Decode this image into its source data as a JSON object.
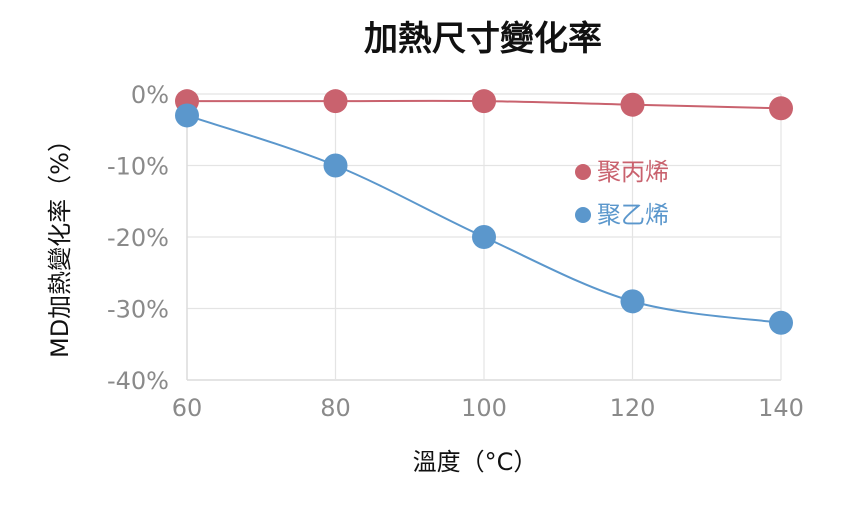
{
  "chart_data": {
    "type": "line",
    "title": "加熱尺寸變化率",
    "xlabel": "溫度（°C）",
    "ylabel": "MD加熱變化率（%）",
    "x": [
      60,
      80,
      100,
      120,
      140
    ],
    "xlim": [
      60,
      140
    ],
    "ylim": [
      -40,
      0
    ],
    "x_ticks": [
      "60",
      "80",
      "100",
      "120",
      "140"
    ],
    "y_ticks": [
      "0%",
      "-10%",
      "-20%",
      "-30%",
      "-40%"
    ],
    "grid": true,
    "legend_position": "center-right",
    "series": [
      {
        "name": "聚丙烯",
        "values": [
          -1.0,
          -1.0,
          -1.0,
          -1.5,
          -2.0
        ],
        "color": "#c9626e"
      },
      {
        "name": "聚乙烯",
        "values": [
          -3.0,
          -10.0,
          -20.0,
          -29.0,
          -32.0
        ],
        "color": "#5b97cc"
      }
    ]
  }
}
